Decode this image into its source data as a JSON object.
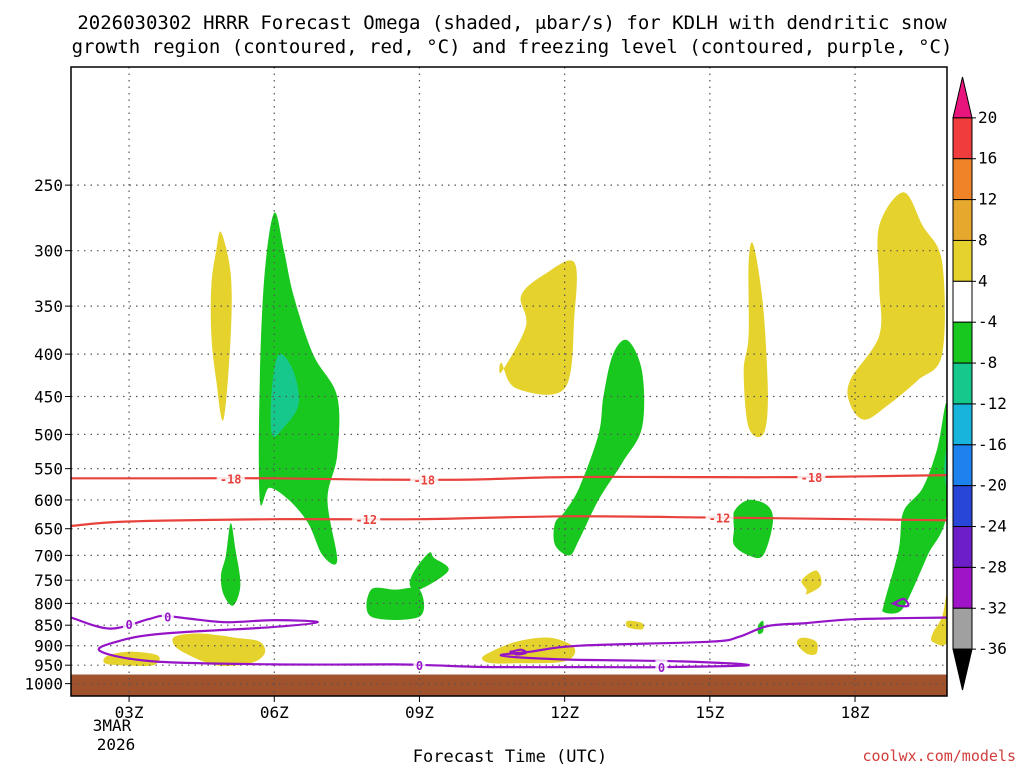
{
  "title_line1": "2026030302 HRRR Forecast Omega (shaded, μbar/s) for KDLH with dendritic snow",
  "title_line2": "growth region (contoured, red, °C) and freezing level (contoured, purple, °C)",
  "watermark": "coolwx.com/models",
  "chart_data": {
    "type": "heatmap",
    "title": "2026030302 HRRR Forecast Omega (shaded, μbar/s) for KDLH with dendritic snow growth region (contoured, red, °C) and freezing level (contoured, purple, °C)",
    "xlabel": "Forecast Time (UTC)",
    "ylabel": "",
    "x_range_hours": [
      1.8,
      19.9
    ],
    "y_range_hpa": [
      180,
      1035
    ],
    "y_scale": "log",
    "y_ticks": [
      250,
      300,
      350,
      400,
      450,
      500,
      550,
      600,
      650,
      700,
      750,
      800,
      850,
      900,
      950,
      1000
    ],
    "x_ticks": [
      {
        "h": 3,
        "label": "03Z"
      },
      {
        "h": 6,
        "label": "06Z"
      },
      {
        "h": 9,
        "label": "09Z"
      },
      {
        "h": 12,
        "label": "12Z"
      },
      {
        "h": 15,
        "label": "15Z"
      },
      {
        "h": 18,
        "label": "18Z"
      }
    ],
    "x_date_labels": [
      "3MAR",
      "2026"
    ],
    "grid": true,
    "ground_top_hpa": 975,
    "colorbar": {
      "position": "right",
      "levels": [
        20,
        16,
        12,
        8,
        4,
        -4,
        -8,
        -12,
        -16,
        -20,
        -24,
        -28,
        -32,
        -36
      ],
      "colors": [
        "#e8157c",
        "#f03c3c",
        "#f08228",
        "#e6a82d",
        "#e6d22d",
        "#ffffff",
        "#18c81e",
        "#16c88c",
        "#18b4dc",
        "#1e82ee",
        "#2846d8",
        "#6e1ec8",
        "#a014c8",
        "#a0a0a0",
        "#000000"
      ]
    },
    "omega_regions": [
      {
        "value": "-4 to -8",
        "color": "#18c81e",
        "points": [
          [
            5.0,
            700
          ],
          [
            5.1,
            640
          ],
          [
            5.2,
            690
          ],
          [
            5.3,
            760
          ],
          [
            5.15,
            805
          ],
          [
            4.95,
            780
          ],
          [
            4.9,
            740
          ]
        ]
      },
      {
        "value": "-4 to -8",
        "color": "#18c81e",
        "points": [
          [
            5.7,
            600
          ],
          [
            5.7,
            430
          ],
          [
            5.8,
            320
          ],
          [
            6.0,
            270
          ],
          [
            6.2,
            300
          ],
          [
            6.4,
            340
          ],
          [
            6.8,
            400
          ],
          [
            7.3,
            450
          ],
          [
            7.3,
            530
          ],
          [
            7.1,
            600
          ],
          [
            7.3,
            710
          ],
          [
            7.0,
            700
          ],
          [
            6.7,
            640
          ],
          [
            6.3,
            600
          ],
          [
            5.9,
            580
          ]
        ]
      },
      {
        "value": "-8 to -12",
        "color": "#16c88c",
        "points": [
          [
            5.95,
            440
          ],
          [
            6.1,
            400
          ],
          [
            6.4,
            420
          ],
          [
            6.5,
            460
          ],
          [
            6.2,
            490
          ],
          [
            5.95,
            500
          ]
        ]
      },
      {
        "value": "-4 to -8",
        "color": "#18c81e",
        "points": [
          [
            8.5,
            770
          ],
          [
            9.0,
            770
          ],
          [
            9.0,
            830
          ],
          [
            8.0,
            830
          ],
          [
            8.0,
            770
          ]
        ]
      },
      {
        "value": "-4 to -8",
        "color": "#18c81e",
        "points": [
          [
            8.9,
            730
          ],
          [
            9.2,
            695
          ],
          [
            9.3,
            705
          ],
          [
            9.6,
            730
          ],
          [
            9.0,
            770
          ],
          [
            8.8,
            760
          ]
        ]
      },
      {
        "value": "-4 to -8",
        "color": "#18c81e",
        "points": [
          [
            12.3,
            580
          ],
          [
            12.7,
            500
          ],
          [
            12.8,
            450
          ],
          [
            13.0,
            400
          ],
          [
            13.3,
            385
          ],
          [
            13.6,
            420
          ],
          [
            13.6,
            490
          ],
          [
            13.2,
            540
          ],
          [
            12.7,
            600
          ],
          [
            12.3,
            670
          ],
          [
            12.1,
            700
          ],
          [
            11.8,
            680
          ],
          [
            11.8,
            640
          ],
          [
            12.0,
            620
          ]
        ]
      },
      {
        "value": "-4 to -8",
        "color": "#18c81e",
        "points": [
          [
            15.5,
            620
          ],
          [
            15.8,
            600
          ],
          [
            16.2,
            610
          ],
          [
            16.3,
            640
          ],
          [
            16.1,
            700
          ],
          [
            15.8,
            700
          ],
          [
            15.5,
            680
          ],
          [
            15.5,
            650
          ]
        ]
      },
      {
        "value": "-4 to -8",
        "color": "#18c81e",
        "points": [
          [
            16.0,
            850
          ],
          [
            16.1,
            840
          ],
          [
            16.1,
            865
          ],
          [
            16.0,
            870
          ]
        ]
      },
      {
        "value": "-4 to -8",
        "color": "#18c81e",
        "points": [
          [
            18.6,
            800
          ],
          [
            18.9,
            690
          ],
          [
            19.0,
            620
          ],
          [
            19.4,
            580
          ],
          [
            19.7,
            520
          ],
          [
            19.9,
            460
          ],
          [
            19.9,
            620
          ],
          [
            19.5,
            700
          ],
          [
            19.1,
            790
          ],
          [
            18.9,
            820
          ],
          [
            18.6,
            820
          ]
        ]
      },
      {
        "value": "-8 to -12",
        "color": "#16c88c",
        "points": [
          [
            19.9,
            520
          ],
          [
            19.9,
            580
          ],
          [
            19.85,
            560
          ],
          [
            19.85,
            540
          ]
        ]
      },
      {
        "value": "4 to 8",
        "color": "#e6d22d",
        "points": [
          [
            4.7,
            330
          ],
          [
            4.8,
            300
          ],
          [
            4.9,
            285
          ],
          [
            5.1,
            320
          ],
          [
            5.1,
            380
          ],
          [
            4.95,
            480
          ],
          [
            4.8,
            430
          ],
          [
            4.7,
            380
          ]
        ]
      },
      {
        "value": "4 to 8",
        "color": "#e6d22d",
        "points": [
          [
            10.7,
            420
          ],
          [
            11.2,
            370
          ],
          [
            11.1,
            340
          ],
          [
            11.6,
            320
          ],
          [
            12.2,
            310
          ],
          [
            12.2,
            360
          ],
          [
            12.0,
            440
          ],
          [
            11.0,
            440
          ],
          [
            10.7,
            410
          ]
        ]
      },
      {
        "value": "4 to 8",
        "color": "#e6d22d",
        "points": [
          [
            15.8,
            310
          ],
          [
            15.9,
            295
          ],
          [
            16.1,
            350
          ],
          [
            16.2,
            450
          ],
          [
            16.1,
            500
          ],
          [
            15.8,
            490
          ],
          [
            15.7,
            420
          ],
          [
            15.8,
            380
          ]
        ]
      },
      {
        "value": "4 to 8",
        "color": "#e6d22d",
        "points": [
          [
            17.0,
            770
          ],
          [
            16.9,
            750
          ],
          [
            17.2,
            730
          ],
          [
            17.3,
            760
          ],
          [
            17.0,
            780
          ]
        ]
      },
      {
        "value": "4 to 8",
        "color": "#e6d22d",
        "points": [
          [
            17.0,
            920
          ],
          [
            16.8,
            895
          ],
          [
            16.9,
            880
          ],
          [
            17.2,
            890
          ],
          [
            17.2,
            920
          ]
        ]
      },
      {
        "value": "4 to 8",
        "color": "#e6d22d",
        "points": [
          [
            17.9,
            430
          ],
          [
            18.5,
            380
          ],
          [
            18.5,
            330
          ],
          [
            18.5,
            280
          ],
          [
            19.0,
            255
          ],
          [
            19.4,
            280
          ],
          [
            19.8,
            310
          ],
          [
            19.8,
            400
          ],
          [
            19.3,
            430
          ],
          [
            18.7,
            460
          ],
          [
            18.2,
            480
          ],
          [
            17.9,
            460
          ]
        ]
      },
      {
        "value": "4 to 8",
        "color": "#e6d22d",
        "points": [
          [
            19.6,
            870
          ],
          [
            19.8,
            830
          ],
          [
            19.9,
            780
          ],
          [
            19.9,
            890
          ],
          [
            19.6,
            890
          ]
        ]
      },
      {
        "value": "4 to 8",
        "color": "#e6d22d",
        "points": [
          [
            4.0,
            875
          ],
          [
            4.5,
            870
          ],
          [
            5.2,
            880
          ],
          [
            5.7,
            890
          ],
          [
            5.8,
            920
          ],
          [
            5.5,
            945
          ],
          [
            4.8,
            950
          ],
          [
            4.1,
            915
          ],
          [
            3.9,
            890
          ]
        ]
      },
      {
        "value": "4 to 8",
        "color": "#e6d22d",
        "points": [
          [
            2.5,
            930
          ],
          [
            2.7,
            920
          ],
          [
            3.1,
            915
          ],
          [
            3.6,
            925
          ],
          [
            3.5,
            950
          ],
          [
            2.8,
            950
          ],
          [
            2.5,
            945
          ]
        ]
      },
      {
        "value": "4 to 8",
        "color": "#e6d22d",
        "points": [
          [
            10.4,
            920
          ],
          [
            11.0,
            890
          ],
          [
            11.7,
            880
          ],
          [
            12.2,
            905
          ],
          [
            12.0,
            940
          ],
          [
            11.0,
            945
          ],
          [
            10.5,
            945
          ],
          [
            10.3,
            935
          ]
        ]
      },
      {
        "value": "4 to 8",
        "color": "#e6d22d",
        "points": [
          [
            13.3,
            840
          ],
          [
            13.6,
            845
          ],
          [
            13.6,
            860
          ],
          [
            13.3,
            855
          ]
        ]
      }
    ],
    "isotherms": [
      {
        "name": "dendritic -18",
        "color": "#e8423c",
        "label": "-18",
        "label_at_h": [
          5.1,
          9.1,
          17.1
        ],
        "points": [
          [
            1.8,
            565
          ],
          [
            4,
            565
          ],
          [
            6,
            565
          ],
          [
            8,
            567
          ],
          [
            10,
            567
          ],
          [
            12,
            563
          ],
          [
            15,
            563
          ],
          [
            17,
            563
          ],
          [
            19.9,
            560
          ]
        ]
      },
      {
        "name": "dendritic -12",
        "color": "#e8423c",
        "label": "-12",
        "label_at_h": [
          7.9,
          15.2
        ],
        "points": [
          [
            1.8,
            645
          ],
          [
            3,
            637
          ],
          [
            6,
            633
          ],
          [
            9,
            633
          ],
          [
            12,
            628
          ],
          [
            15,
            630
          ],
          [
            18,
            633
          ],
          [
            19.9,
            635
          ]
        ]
      },
      {
        "name": "freezing level 0",
        "color": "#9614c8",
        "label": "0",
        "label_at_h": [
          3.0,
          3.8,
          9.0,
          14.0
        ],
        "points": [
          [
            1.8,
            832
          ],
          [
            2.6,
            858
          ],
          [
            3.4,
            836
          ],
          [
            3.7,
            828
          ],
          [
            4.2,
            834
          ],
          [
            5.0,
            843
          ],
          [
            6.0,
            838
          ],
          [
            6.9,
            843
          ],
          [
            5.9,
            855
          ],
          [
            3.7,
            870
          ],
          [
            2.8,
            888
          ],
          [
            2.4,
            913
          ],
          [
            3.5,
            940
          ],
          [
            6.0,
            948
          ],
          [
            8.5,
            948
          ],
          [
            9.2,
            950
          ],
          [
            10.5,
            955
          ],
          [
            12.5,
            955
          ],
          [
            14.0,
            955
          ],
          [
            15.8,
            950
          ],
          [
            14.4,
            940
          ],
          [
            12.0,
            935
          ],
          [
            10.7,
            925
          ],
          [
            11.3,
            915
          ],
          [
            12.3,
            900
          ],
          [
            15.0,
            890
          ],
          [
            15.6,
            878
          ],
          [
            16.2,
            852
          ],
          [
            17.0,
            845
          ],
          [
            18.0,
            836
          ],
          [
            19.9,
            832
          ]
        ]
      },
      {
        "name": "freezing level 0 (small)",
        "color": "#9614c8",
        "label": "",
        "label_at_h": [],
        "points": [
          [
            18.8,
            800
          ],
          [
            19.0,
            790
          ],
          [
            19.1,
            805
          ],
          [
            18.9,
            805
          ],
          [
            18.8,
            800
          ]
        ]
      },
      {
        "name": "freezing level 0 (small 2)",
        "color": "#9614c8",
        "label": "",
        "label_at_h": [],
        "points": [
          [
            10.9,
            915
          ],
          [
            11.1,
            910
          ],
          [
            11.2,
            918
          ],
          [
            11.0,
            922
          ],
          [
            10.9,
            915
          ]
        ]
      }
    ]
  }
}
